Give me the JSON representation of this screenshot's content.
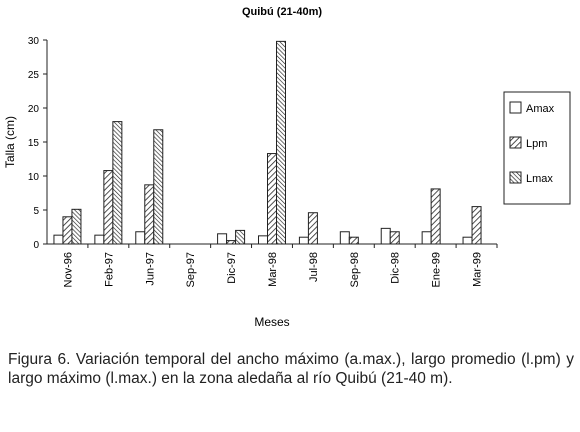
{
  "chart_data": {
    "type": "bar",
    "title": "Quibú (21-40m)",
    "xlabel": "Meses",
    "ylabel": "Talla (cm)",
    "ylim": [
      0,
      30
    ],
    "yticks": [
      "0",
      "5",
      "10",
      "15",
      "20",
      "25",
      "30"
    ],
    "grid": false,
    "legend_position": "right",
    "categories": [
      "Nov-96",
      "Feb-97",
      "Jun-97",
      "Sep-97",
      "Dic-97",
      "Mar-98",
      "Jul-98",
      "Sep-98",
      "Dic-98",
      "Ene-99",
      "Mar-99"
    ],
    "series": [
      {
        "name": "Amax",
        "pattern": "white",
        "values": [
          1.3,
          1.3,
          1.8,
          0,
          1.5,
          1.2,
          1.0,
          1.8,
          2.3,
          1.8,
          1.0
        ]
      },
      {
        "name": "Lpm",
        "pattern": "hatch",
        "values": [
          4.0,
          10.8,
          8.7,
          0,
          0.5,
          13.3,
          4.6,
          1.0,
          1.8,
          8.1,
          5.5
        ]
      },
      {
        "name": "Lmax",
        "pattern": "dense",
        "values": [
          5.1,
          18.0,
          16.8,
          0,
          2.0,
          29.8,
          0,
          0,
          0,
          0,
          0
        ]
      }
    ]
  },
  "caption": "Figura 6. Variación temporal del ancho máximo (a.max.), largo promedio (l.pm) y largo máximo (l.max.) en la zona aledaña al río Quibú (21-40 m)."
}
